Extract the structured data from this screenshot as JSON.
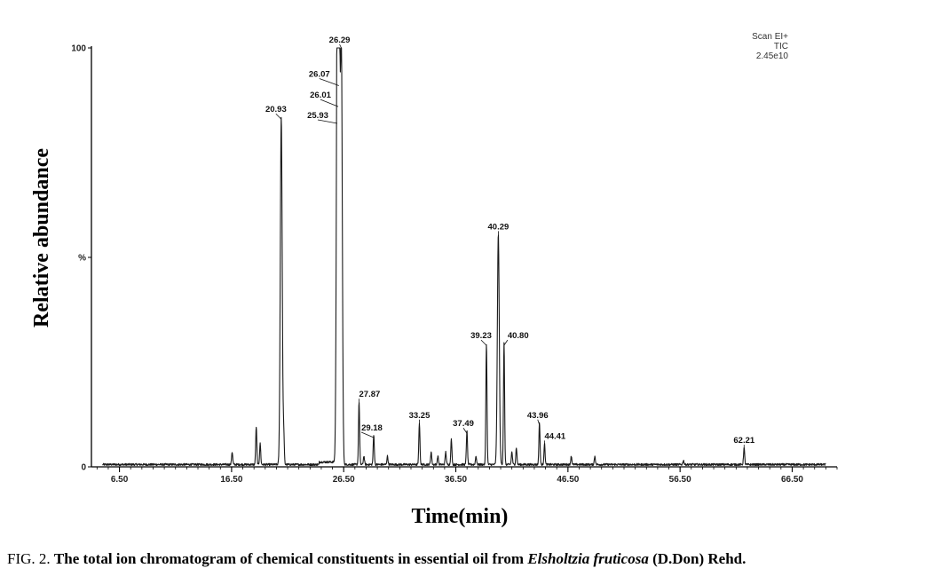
{
  "caption": {
    "fig_label": "FIG. 2.",
    "text_before": "The total ion chromatogram of chemical constituents in essential oil from",
    "species": "Elsholtzia fruticosa",
    "text_after": "(D.Don) Rehd."
  },
  "scan_info": [
    "Scan EI+",
    "TIC",
    "2.45e10"
  ],
  "chart_data": {
    "type": "line",
    "title": "",
    "xlabel": "Time(min)",
    "ylabel": "Relative abundance",
    "xlim": [
      4.0,
      70.5
    ],
    "ylim": [
      0,
      100
    ],
    "xticks": [
      6.5,
      16.5,
      26.5,
      36.5,
      46.5,
      56.5,
      66.5
    ],
    "xtick_labels": [
      "6.50",
      "16.50",
      "26.50",
      "36.50",
      "46.50",
      "56.50",
      "66.50"
    ],
    "yticks": [
      0,
      50,
      100
    ],
    "ytick_labels": [
      "0",
      "%",
      "100"
    ],
    "grid": false,
    "labeled_peaks": [
      {
        "x": 20.93,
        "y": 83,
        "label": "20.93"
      },
      {
        "x": 25.93,
        "y": 82,
        "label": "25.93"
      },
      {
        "x": 26.01,
        "y": 86,
        "label": "26.01"
      },
      {
        "x": 26.07,
        "y": 91,
        "label": "26.07"
      },
      {
        "x": 26.29,
        "y": 100,
        "label": "26.29"
      },
      {
        "x": 27.87,
        "y": 15,
        "label": "27.87"
      },
      {
        "x": 29.18,
        "y": 7,
        "label": "29.18"
      },
      {
        "x": 33.25,
        "y": 10,
        "label": "33.25"
      },
      {
        "x": 37.49,
        "y": 8,
        "label": "37.49"
      },
      {
        "x": 39.23,
        "y": 29,
        "label": "39.23"
      },
      {
        "x": 40.29,
        "y": 55,
        "label": "40.29"
      },
      {
        "x": 40.8,
        "y": 29,
        "label": "40.80"
      },
      {
        "x": 43.96,
        "y": 10,
        "label": "43.96"
      },
      {
        "x": 44.41,
        "y": 5,
        "label": "44.41"
      },
      {
        "x": 62.21,
        "y": 4,
        "label": "62.21"
      }
    ],
    "minor_peaks": [
      {
        "x": 16.55,
        "y": 3
      },
      {
        "x": 18.7,
        "y": 9
      },
      {
        "x": 19.05,
        "y": 5
      },
      {
        "x": 21.15,
        "y": 7
      },
      {
        "x": 28.3,
        "y": 2
      },
      {
        "x": 30.4,
        "y": 2
      },
      {
        "x": 34.3,
        "y": 3
      },
      {
        "x": 34.9,
        "y": 2
      },
      {
        "x": 35.6,
        "y": 3
      },
      {
        "x": 36.1,
        "y": 6
      },
      {
        "x": 38.3,
        "y": 2
      },
      {
        "x": 41.5,
        "y": 3
      },
      {
        "x": 41.9,
        "y": 4
      },
      {
        "x": 46.8,
        "y": 2
      },
      {
        "x": 48.9,
        "y": 2
      },
      {
        "x": 56.8,
        "y": 1
      }
    ]
  }
}
